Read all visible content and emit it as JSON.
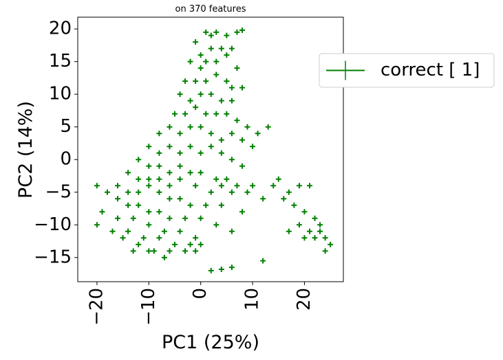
{
  "chart_data": {
    "type": "scatter",
    "title": "on 370 features",
    "xlabel": "PC1 (25%)",
    "ylabel": "PC2 (14%)",
    "xlim": [
      -23.7,
      27.5
    ],
    "ylim": [
      -18.7,
      21.8
    ],
    "xticks": [
      {
        "value": -20,
        "label": "−20"
      },
      {
        "value": -10,
        "label": "−10"
      },
      0,
      10,
      20
    ],
    "yticks": [
      {
        "value": -15,
        "label": "−15"
      },
      {
        "value": -10,
        "label": "−10"
      },
      {
        "value": -5,
        "label": "−5"
      },
      0,
      5,
      10,
      15,
      20
    ],
    "grid": false,
    "legend": "outside upper right",
    "series": [
      {
        "name": "correct [ 1]",
        "color": "#008000",
        "x": [
          1,
          2,
          3,
          5,
          7,
          8,
          -1,
          0,
          2,
          4,
          6,
          -2,
          0,
          1,
          3,
          5,
          7,
          -3,
          -1,
          1,
          3,
          5,
          6,
          -4,
          -2,
          0,
          2,
          4,
          6,
          8,
          -5,
          -3,
          -1,
          1,
          3,
          5,
          7,
          9,
          11,
          -8,
          -6,
          -4,
          -2,
          0,
          2,
          4,
          6,
          8,
          10,
          13,
          -10,
          -8,
          -6,
          -4,
          -2,
          0,
          2,
          4,
          6,
          8,
          -12,
          -10,
          -8,
          -6,
          -4,
          -2,
          0,
          3,
          5,
          7,
          9,
          -14,
          -12,
          -10,
          -8,
          -6,
          -4,
          -1,
          2,
          4,
          6,
          10,
          -16,
          -14,
          -12,
          -10,
          -8,
          -6,
          -4,
          -2,
          1,
          4,
          8,
          12,
          -20,
          -18,
          -16,
          -14,
          -12,
          -10,
          -8,
          -6,
          -3,
          0,
          3,
          6,
          -19,
          -16,
          -13,
          -10,
          -7,
          -4,
          -1,
          -17,
          -14,
          -11,
          -8,
          -5,
          -2,
          0,
          -20,
          -15,
          -12,
          -9,
          -6,
          -3,
          -1,
          -13,
          -10,
          -7,
          2,
          4,
          6,
          12,
          14,
          15,
          17,
          19,
          21,
          16,
          18,
          20,
          22,
          23,
          19,
          21,
          23,
          25,
          20,
          22,
          24,
          24,
          17
        ],
        "values": [
          19.5,
          19,
          19.5,
          19,
          19.5,
          19.8,
          18,
          16,
          17,
          17,
          17,
          15,
          14,
          15,
          15,
          16,
          14,
          12,
          12,
          12,
          13,
          12,
          11,
          10,
          9,
          10,
          10,
          9,
          9,
          11,
          7,
          7,
          8,
          7,
          7,
          7,
          6,
          5,
          4,
          4,
          5,
          4,
          5,
          5,
          4,
          3,
          4,
          3,
          2,
          5,
          2,
          1,
          2,
          1,
          2,
          1,
          2,
          1,
          0,
          -1,
          0,
          -1,
          -1,
          -2,
          -1,
          -2,
          -2,
          -3,
          -3,
          -4,
          -5,
          -2,
          -3,
          -3,
          -3,
          -4,
          -3,
          -4,
          -5,
          -4,
          -5,
          -4,
          -4,
          -5,
          -5,
          -4,
          -5,
          -6,
          -6,
          -7,
          -7,
          -7,
          -8,
          -6,
          -4,
          -5,
          -6,
          -7,
          -7,
          -8,
          -8,
          -9,
          -9,
          -9,
          -10,
          -11,
          -8,
          -9,
          -9,
          -10,
          -11,
          -11,
          -12,
          -11,
          -11,
          -12,
          -12,
          -13,
          -13,
          -13,
          -10,
          -12,
          -13,
          -14,
          -14,
          -14,
          -14,
          -14,
          -14,
          -15,
          -17,
          -16.8,
          -16.5,
          -15.5,
          -4,
          -3,
          -5,
          -4,
          -4,
          -6,
          -7,
          -8,
          -9,
          -10,
          -10,
          -11,
          -11,
          -13,
          -12,
          -12,
          -12,
          -14,
          -11
        ]
      }
    ]
  }
}
